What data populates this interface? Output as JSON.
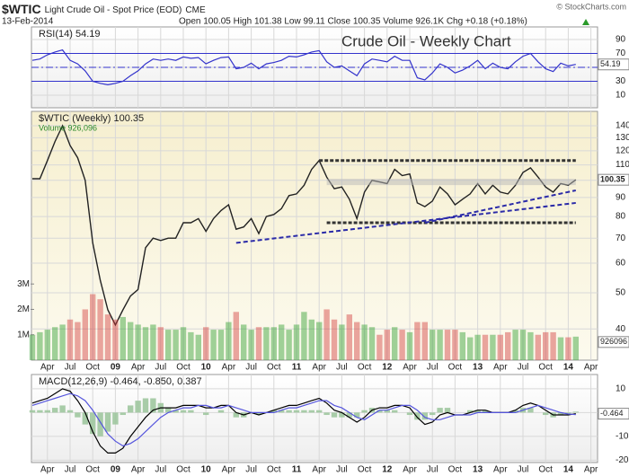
{
  "header": {
    "symbol": "$WTIC",
    "name": "Light Crude Oil - Spot Price (EOD)",
    "exchange": "CME",
    "date": "13-Feb-2014",
    "quote": "Open 100.05 High 101.38 Low 99.11 Close 100.35 Volume 926.1K Chg +0.18 (+0.18%)",
    "credit": "© StockCharts.com"
  },
  "chart_data": [
    {
      "type": "line",
      "legend": "RSI(14) 54.19",
      "annotation": "Crude Oil - Weekly Chart",
      "x": [
        "2008-02",
        "2008-03",
        "2008-04",
        "2008-05",
        "2008-06",
        "2008-07",
        "2008-08",
        "2008-09",
        "2008-10",
        "2008-11",
        "2008-12",
        "2009-01",
        "2009-02",
        "2009-03",
        "2009-04",
        "2009-05",
        "2009-06",
        "2009-07",
        "2009-08",
        "2009-09",
        "2009-10",
        "2009-11",
        "2009-12",
        "2010-01",
        "2010-02",
        "2010-03",
        "2010-04",
        "2010-05",
        "2010-06",
        "2010-07",
        "2010-08",
        "2010-09",
        "2010-10",
        "2010-11",
        "2010-12",
        "2011-01",
        "2011-02",
        "2011-03",
        "2011-04",
        "2011-05",
        "2011-06",
        "2011-07",
        "2011-08",
        "2011-09",
        "2011-10",
        "2011-11",
        "2011-12",
        "2012-01",
        "2012-02",
        "2012-03",
        "2012-04",
        "2012-05",
        "2012-06",
        "2012-07",
        "2012-08",
        "2012-09",
        "2012-10",
        "2012-11",
        "2012-12",
        "2013-01",
        "2013-02",
        "2013-03",
        "2013-04",
        "2013-05",
        "2013-06",
        "2013-07",
        "2013-08",
        "2013-09",
        "2013-10",
        "2013-11",
        "2013-12",
        "2014-01",
        "2014-02"
      ],
      "series": [
        {
          "name": "RSI(14)",
          "color": "#3333cc",
          "values": [
            60,
            62,
            68,
            72,
            75,
            60,
            55,
            45,
            30,
            27,
            25,
            27,
            30,
            38,
            45,
            55,
            62,
            60,
            62,
            60,
            65,
            63,
            64,
            55,
            60,
            64,
            65,
            48,
            50,
            56,
            48,
            55,
            57,
            60,
            66,
            65,
            68,
            72,
            74,
            58,
            50,
            52,
            45,
            38,
            55,
            62,
            60,
            58,
            66,
            60,
            60,
            35,
            32,
            42,
            55,
            50,
            42,
            46,
            52,
            60,
            48,
            56,
            50,
            48,
            58,
            66,
            70,
            58,
            48,
            44,
            56,
            52,
            54.19
          ]
        }
      ],
      "bands": [
        30,
        70
      ],
      "midline": 50,
      "ylim": [
        -8,
        108
      ],
      "yticks": [
        90,
        70,
        50,
        30,
        10
      ]
    },
    {
      "type": "line",
      "legend": "$WTIC (Weekly) 100.35",
      "log_scale": true,
      "x": [
        "2008-02",
        "2008-03",
        "2008-04",
        "2008-05",
        "2008-06",
        "2008-07",
        "2008-08",
        "2008-09",
        "2008-10",
        "2008-11",
        "2008-12",
        "2009-01",
        "2009-02",
        "2009-03",
        "2009-04",
        "2009-05",
        "2009-06",
        "2009-07",
        "2009-08",
        "2009-09",
        "2009-10",
        "2009-11",
        "2009-12",
        "2010-01",
        "2010-02",
        "2010-03",
        "2010-04",
        "2010-05",
        "2010-06",
        "2010-07",
        "2010-08",
        "2010-09",
        "2010-10",
        "2010-11",
        "2010-12",
        "2011-01",
        "2011-02",
        "2011-03",
        "2011-04",
        "2011-05",
        "2011-06",
        "2011-07",
        "2011-08",
        "2011-09",
        "2011-10",
        "2011-11",
        "2011-12",
        "2012-01",
        "2012-02",
        "2012-03",
        "2012-04",
        "2012-05",
        "2012-06",
        "2012-07",
        "2012-08",
        "2012-09",
        "2012-10",
        "2012-11",
        "2012-12",
        "2013-01",
        "2013-02",
        "2013-03",
        "2013-04",
        "2013-05",
        "2013-06",
        "2013-07",
        "2013-08",
        "2013-09",
        "2013-10",
        "2013-11",
        "2013-12",
        "2014-01",
        "2014-02"
      ],
      "series": [
        {
          "name": "$WTIC (Weekly)",
          "color": "#222222",
          "values": [
            101,
            101,
            113,
            127,
            140,
            124,
            115,
            100,
            68,
            54,
            45,
            41,
            45,
            49,
            51,
            66,
            70,
            69,
            70,
            70,
            77,
            77,
            79,
            73,
            79,
            83,
            86,
            74,
            75,
            79,
            72,
            80,
            81,
            84,
            91,
            92,
            97,
            107,
            113,
            102,
            95,
            96,
            89,
            79,
            93,
            100,
            99,
            98,
            107,
            103,
            104,
            87,
            85,
            88,
            96,
            92,
            86,
            89,
            92,
            98,
            92,
            97,
            93,
            92,
            97,
            105,
            108,
            102,
            96,
            93,
            98,
            97,
            100.35
          ]
        },
        {
          "name": "Volume",
          "legend": "Volume 926,096",
          "type": "bar",
          "axis": "y2",
          "color": "#2e9e2e",
          "down_color": "#d23c3c",
          "values": [
            1000000,
            1100000,
            1200000,
            1300000,
            1400000,
            1600000,
            1500000,
            2000000,
            2600000,
            2400000,
            1800000,
            1600000,
            1700000,
            1500000,
            1400000,
            1300000,
            1400000,
            1300000,
            1200000,
            1200000,
            1300000,
            1100000,
            1000000,
            1300000,
            1200000,
            1200000,
            1500000,
            1900000,
            1400000,
            1200000,
            1300000,
            1300000,
            1300000,
            1400000,
            1200000,
            1400000,
            1900000,
            1600000,
            1500000,
            2000000,
            1600000,
            1400000,
            1800000,
            1500000,
            1400000,
            1300000,
            1000000,
            1200000,
            1300000,
            1200000,
            1100000,
            1500000,
            1500000,
            1200000,
            1200000,
            1200000,
            1200000,
            1100000,
            900000,
            1000000,
            1000000,
            1000000,
            1000000,
            1100000,
            1200000,
            1200000,
            1100000,
            1000000,
            1100000,
            1100000,
            900000,
            900000,
            926096
          ]
        }
      ],
      "levels": [
        {
          "value": 113,
          "from": "2011-04",
          "to": "2014-02"
        },
        {
          "value": 99,
          "from": "2011-05",
          "to": "2014-02",
          "color": "#b8b8b8"
        },
        {
          "value": 77,
          "from": "2011-05",
          "to": "2014-02"
        }
      ],
      "trendlines": [
        {
          "from": [
            "2010-05",
            68
          ],
          "to": [
            "2014-02",
            87
          ]
        },
        {
          "from": [
            "2012-06",
            77
          ],
          "to": [
            "2014-02",
            94
          ]
        }
      ],
      "ylim": [
        33,
        153
      ],
      "yticks": [
        140,
        130,
        120,
        110,
        100,
        90,
        80,
        70,
        60,
        50,
        40
      ],
      "y2lim": [
        0,
        9800000
      ],
      "y2ticks": [
        {
          "value": 3000000,
          "label": "3M"
        },
        {
          "value": 2000000,
          "label": "2M"
        },
        {
          "value": 1000000,
          "label": "1M"
        }
      ],
      "xticks": [
        {
          "value": "2008-04",
          "label": "Apr"
        },
        {
          "value": "2008-07",
          "label": "Jul"
        },
        {
          "value": "2008-10",
          "label": "Oct"
        },
        {
          "value": "2009-01",
          "label": "09"
        },
        {
          "value": "2009-04",
          "label": "Apr"
        },
        {
          "value": "2009-07",
          "label": "Jul"
        },
        {
          "value": "2009-10",
          "label": "Oct"
        },
        {
          "value": "2010-01",
          "label": "10"
        },
        {
          "value": "2010-04",
          "label": "Apr"
        },
        {
          "value": "2010-07",
          "label": "Jul"
        },
        {
          "value": "2010-10",
          "label": "Oct"
        },
        {
          "value": "2011-01",
          "label": "11"
        },
        {
          "value": "2011-04",
          "label": "Apr"
        },
        {
          "value": "2011-07",
          "label": "Jul"
        },
        {
          "value": "2011-10",
          "label": "Oct"
        },
        {
          "value": "2012-01",
          "label": "12"
        },
        {
          "value": "2012-04",
          "label": "Apr"
        },
        {
          "value": "2012-07",
          "label": "Jul"
        },
        {
          "value": "2012-10",
          "label": "Oct"
        },
        {
          "value": "2013-01",
          "label": "13"
        },
        {
          "value": "2013-04",
          "label": "Apr"
        },
        {
          "value": "2013-07",
          "label": "Jul"
        },
        {
          "value": "2013-10",
          "label": "Oct"
        },
        {
          "value": "2014-01",
          "label": "14"
        },
        {
          "value": "2014-04",
          "label": "Apr"
        }
      ]
    },
    {
      "type": "line",
      "legend": "MACD(12,26,9) -0.464, -0.850, 0.387",
      "x": [
        "2008-02",
        "2008-03",
        "2008-04",
        "2008-05",
        "2008-06",
        "2008-07",
        "2008-08",
        "2008-09",
        "2008-10",
        "2008-11",
        "2008-12",
        "2009-01",
        "2009-02",
        "2009-03",
        "2009-04",
        "2009-05",
        "2009-06",
        "2009-07",
        "2009-08",
        "2009-09",
        "2009-10",
        "2009-11",
        "2009-12",
        "2010-01",
        "2010-02",
        "2010-03",
        "2010-04",
        "2010-05",
        "2010-06",
        "2010-07",
        "2010-08",
        "2010-09",
        "2010-10",
        "2010-11",
        "2010-12",
        "2011-01",
        "2011-02",
        "2011-03",
        "2011-04",
        "2011-05",
        "2011-06",
        "2011-07",
        "2011-08",
        "2011-09",
        "2011-10",
        "2011-11",
        "2011-12",
        "2012-01",
        "2012-02",
        "2012-03",
        "2012-04",
        "2012-05",
        "2012-06",
        "2012-07",
        "2012-08",
        "2012-09",
        "2012-10",
        "2012-11",
        "2012-12",
        "2013-01",
        "2013-02",
        "2013-03",
        "2013-04",
        "2013-05",
        "2013-06",
        "2013-07",
        "2013-08",
        "2013-09",
        "2013-10",
        "2013-11",
        "2013-12",
        "2014-01",
        "2014-02"
      ],
      "series": [
        {
          "name": "Histogram",
          "type": "bar",
          "color": "#9fc79f",
          "values": [
            1,
            1,
            1,
            2,
            3,
            1,
            -2,
            -5,
            -9,
            -10,
            -8,
            -5,
            -1,
            3,
            5,
            6,
            6,
            4,
            2,
            1,
            1,
            1,
            0,
            -1,
            0,
            1,
            0,
            -2,
            -2,
            0,
            -1,
            0,
            1,
            1,
            1,
            1,
            1,
            1,
            1,
            -1,
            -2,
            -2,
            -2,
            -2,
            1,
            2,
            1,
            1,
            1,
            0,
            -1,
            -3,
            -3,
            -1,
            2,
            2,
            0,
            0,
            1,
            1,
            1,
            0,
            0,
            0,
            1,
            2,
            2,
            0,
            -1,
            -2,
            -1,
            -0.4,
            0.387
          ]
        },
        {
          "name": "MACD",
          "color": "#000000",
          "values": [
            4,
            5,
            6,
            8,
            10,
            9,
            5,
            0,
            -8,
            -14,
            -17,
            -17,
            -15,
            -10,
            -6,
            -2,
            1,
            2,
            2,
            2,
            3,
            3,
            3,
            2,
            2,
            3,
            3,
            0,
            -1,
            0,
            -1,
            0,
            1,
            2,
            3,
            3,
            4,
            5,
            6,
            4,
            1,
            0,
            -2,
            -4,
            -2,
            1,
            2,
            2,
            3,
            3,
            2,
            -2,
            -5,
            -4,
            -1,
            0,
            -1,
            -1,
            0,
            1,
            1,
            0,
            0,
            0,
            1,
            3,
            4,
            3,
            1,
            -1,
            -1,
            -1,
            -0.464
          ]
        },
        {
          "name": "Signal",
          "color": "#5555dd",
          "values": [
            3,
            4,
            5,
            6,
            7,
            8,
            7,
            5,
            1,
            -4,
            -9,
            -12,
            -14,
            -13,
            -11,
            -8,
            -5,
            -2,
            0,
            1,
            2,
            2,
            3,
            3,
            2,
            2,
            3,
            2,
            1,
            0,
            0,
            0,
            0,
            1,
            2,
            2,
            3,
            4,
            5,
            5,
            3,
            2,
            0,
            -2,
            -3,
            -1,
            1,
            1,
            2,
            3,
            3,
            1,
            -2,
            -3,
            -3,
            -2,
            -1,
            -1,
            -1,
            0,
            0,
            0,
            0,
            0,
            0,
            1,
            2,
            3,
            2,
            1,
            0,
            -0.6,
            -0.85
          ]
        }
      ],
      "ylim": [
        -21,
        16
      ],
      "yticks": [
        10,
        0,
        -10,
        -20
      ]
    }
  ]
}
